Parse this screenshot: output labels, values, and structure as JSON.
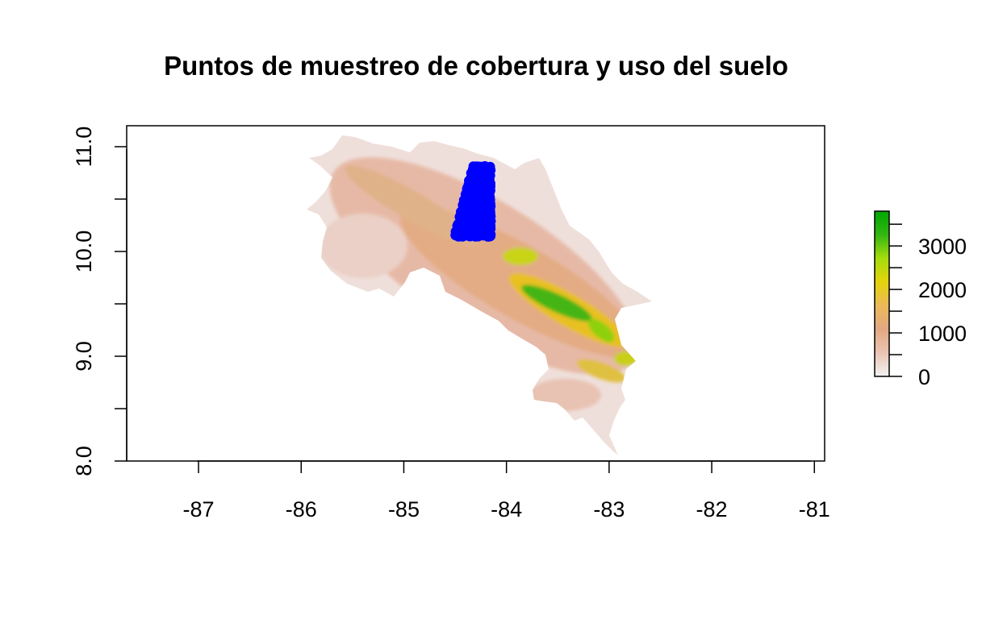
{
  "chart_data": {
    "type": "heatmap",
    "title": "Puntos de muestreo de cobertura y uso del suelo",
    "xlabel": "",
    "ylabel": "",
    "xlim": [
      -87.7,
      -80.9
    ],
    "ylim": [
      8.0,
      11.2
    ],
    "x_ticks": [
      -87,
      -86,
      -85,
      -84,
      -83,
      -82,
      -81
    ],
    "x_tick_labels": [
      "-87",
      "-86",
      "-85",
      "-84",
      "-83",
      "-82",
      "-81"
    ],
    "y_ticks": [
      8.0,
      8.5,
      9.0,
      9.5,
      10.0,
      10.5,
      11.0
    ],
    "y_tick_labels": [
      "8.0",
      "",
      "9.0",
      "",
      "10.0",
      "",
      "11.0"
    ],
    "grid": false,
    "raster_layer": {
      "name": "elevation",
      "legend_ticks": [
        0,
        1000,
        2000,
        3000
      ],
      "legend_tick_labels": [
        "0",
        "1000",
        "2000",
        "3000"
      ],
      "legend_range": [
        0,
        3800
      ],
      "color_ramp": [
        "#f2f2f2",
        "#eac4b4",
        "#e2a882",
        "#ebb95a",
        "#e4d40c",
        "#a6dc0e",
        "#33b612",
        "#00a600"
      ],
      "legend_position": "right"
    },
    "points_layer": {
      "color": "#0000ff",
      "extent_lon": [
        -84.53,
        -84.15
      ],
      "extent_lat": [
        10.14,
        10.82
      ]
    }
  }
}
